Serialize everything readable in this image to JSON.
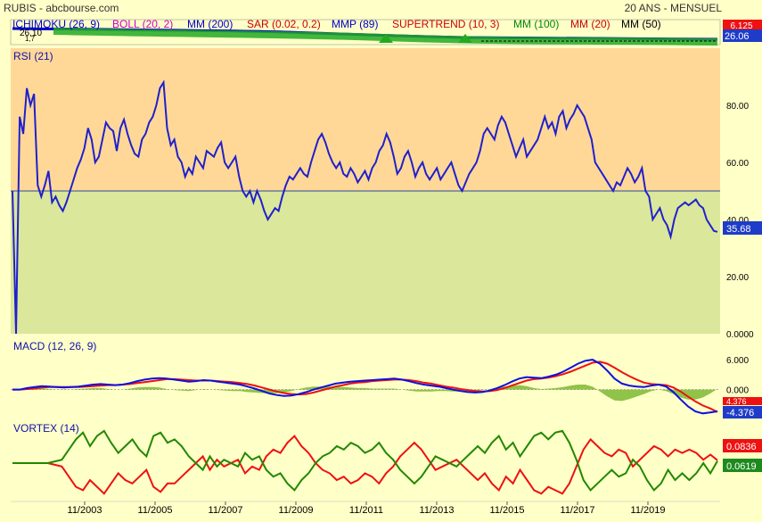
{
  "header": {
    "title": "RUBIS - abcbourse.com",
    "period": "20 ANS - MENSUEL"
  },
  "top_panel": {
    "legend": [
      {
        "label": "ICHIMOKU (26, 9)",
        "color": "#0000cc"
      },
      {
        "label": "BOLL (20, 2)",
        "color": "#cc00cc"
      },
      {
        "label": "MM (200)",
        "color": "#0000cc"
      },
      {
        "label": "SAR (0.02, 0.2)",
        "color": "#cc0000"
      },
      {
        "label": "MMP (89)",
        "color": "#0000cc"
      },
      {
        "label": "SUPERTREND (10, 3)",
        "color": "#cc0000"
      },
      {
        "label": "MM (100)",
        "color": "#008800"
      },
      {
        "label": "MM (20)",
        "color": "#cc0000"
      },
      {
        "label": "MM (50)",
        "color": "#000000"
      }
    ],
    "overlap_label": "26,10",
    "overlap_sub": "1,7",
    "price_tag_hidden": "6.125",
    "price_tag": "26.06"
  },
  "colors": {
    "background": "#ffffc8",
    "rsi_upper_zone": "#ffd898",
    "rsi_lower_zone": "#dbe79a",
    "rsi_line": "#2020cc",
    "macd_line": "#1010dd",
    "signal_line": "#ee1111",
    "histogram": "#7cb832",
    "vortex_plus": "#228800",
    "vortex_minus": "#ee1111",
    "axis_text": "#000000"
  },
  "x_axis": {
    "ticks": [
      "11/2003",
      "11/2005",
      "11/2007",
      "11/2009",
      "11/2011",
      "11/2013",
      "11/2015",
      "11/2017",
      "11/2019"
    ]
  },
  "chart_data": [
    {
      "type": "line",
      "title": "RSI (21)",
      "ylim": [
        0,
        100
      ],
      "yticks": [
        "80.00",
        "60.00",
        "40.00",
        "20.00",
        "0.0000"
      ],
      "reference_line": 50,
      "last_value_label": "35.68",
      "series": [
        {
          "name": "RSI (21)",
          "values": [
            50,
            0,
            76,
            70,
            86,
            80,
            84,
            52,
            48,
            52,
            57,
            46,
            48,
            45,
            43,
            46,
            50,
            54,
            58,
            61,
            65,
            72,
            68,
            60,
            62,
            68,
            74,
            72,
            71,
            64,
            72,
            75,
            70,
            66,
            63,
            62,
            68,
            70,
            74,
            76,
            80,
            86,
            88,
            72,
            66,
            68,
            62,
            60,
            55,
            58,
            56,
            62,
            60,
            58,
            64,
            63,
            62,
            65,
            67,
            60,
            58,
            60,
            62,
            55,
            50,
            48,
            50,
            46,
            50,
            47,
            43,
            40,
            42,
            44,
            43,
            48,
            52,
            55,
            54,
            56,
            58,
            56,
            55,
            60,
            64,
            68,
            70,
            67,
            63,
            60,
            58,
            60,
            56,
            55,
            58,
            56,
            53,
            55,
            57,
            54,
            58,
            60,
            64,
            66,
            70,
            67,
            62,
            56,
            58,
            62,
            64,
            60,
            55,
            58,
            60,
            56,
            54,
            56,
            58,
            54,
            56,
            58,
            60,
            56,
            52,
            50,
            53,
            56,
            58,
            60,
            64,
            70,
            72,
            70,
            68,
            73,
            76,
            74,
            70,
            66,
            62,
            65,
            68,
            62,
            64,
            66,
            68,
            72,
            76,
            72,
            74,
            70,
            76,
            78,
            72,
            75,
            77,
            80,
            78,
            76,
            72,
            68,
            60,
            58,
            56,
            54,
            52,
            50,
            53,
            52,
            55,
            58,
            56,
            53,
            55,
            58,
            50,
            48,
            40,
            42,
            44,
            40,
            38,
            34,
            40,
            44,
            45,
            46,
            45,
            46,
            47,
            45,
            44,
            40,
            38,
            36,
            35.68
          ]
        }
      ]
    },
    {
      "type": "line",
      "title": "MACD (12, 26, 9)",
      "ylim": [
        -6,
        8
      ],
      "yticks": [
        "6.000",
        "0.000"
      ],
      "last_value_labels": [
        "4.376",
        "-4.376"
      ],
      "series": [
        {
          "name": "MACD",
          "values": [
            0,
            0,
            0.3,
            0.5,
            0.7,
            0.6,
            0.5,
            0.4,
            0.5,
            0.6,
            0.8,
            1.0,
            1.1,
            1.0,
            0.9,
            1.0,
            1.3,
            1.7,
            2.0,
            2.2,
            2.3,
            2.2,
            2.0,
            1.8,
            1.6,
            1.7,
            1.9,
            1.8,
            1.6,
            1.4,
            1.2,
            1.0,
            0.6,
            0.2,
            -0.3,
            -0.8,
            -1.1,
            -1.3,
            -1.2,
            -0.9,
            -0.5,
            0,
            0.4,
            0.8,
            1.2,
            1.4,
            1.6,
            1.7,
            1.8,
            1.9,
            2.0,
            2.1,
            2.2,
            2.0,
            1.7,
            1.3,
            1.0,
            0.8,
            0.6,
            0.3,
            0,
            -0.3,
            -0.5,
            -0.6,
            -0.5,
            -0.2,
            0.3,
            0.9,
            1.6,
            2.2,
            2.5,
            2.4,
            2.3,
            2.6,
            3.0,
            3.6,
            4.4,
            5.2,
            5.8,
            6.0,
            5.2,
            3.8,
            2.2,
            1.2,
            0.8,
            0.6,
            0.5,
            0.8,
            1.0,
            0.6,
            -0.5,
            -2.0,
            -3.4,
            -4.4,
            -4.8,
            -4.6,
            -4.376
          ]
        },
        {
          "name": "Signal",
          "values": [
            0,
            0,
            0.1,
            0.2,
            0.4,
            0.5,
            0.5,
            0.5,
            0.5,
            0.5,
            0.6,
            0.7,
            0.8,
            0.9,
            0.9,
            1.0,
            1.1,
            1.3,
            1.5,
            1.7,
            1.9,
            2.1,
            2.1,
            2.0,
            1.9,
            1.8,
            1.8,
            1.8,
            1.7,
            1.6,
            1.5,
            1.3,
            1.1,
            0.8,
            0.4,
            0,
            -0.4,
            -0.7,
            -0.9,
            -1.0,
            -0.9,
            -0.6,
            -0.2,
            0.2,
            0.6,
            0.9,
            1.2,
            1.4,
            1.5,
            1.7,
            1.8,
            1.9,
            2.0,
            2.0,
            1.9,
            1.7,
            1.4,
            1.2,
            0.9,
            0.6,
            0.4,
            0.1,
            -0.1,
            -0.3,
            -0.4,
            -0.3,
            -0.1,
            0.3,
            0.8,
            1.3,
            1.8,
            2.1,
            2.2,
            2.4,
            2.7,
            3.1,
            3.6,
            4.2,
            4.8,
            5.4,
            5.6,
            5.2,
            4.4,
            3.5,
            2.7,
            2.0,
            1.4,
            1.1,
            1.0,
            0.9,
            0.4,
            -0.4,
            -1.4,
            -2.4,
            -3.2,
            -3.8,
            -4.5
          ]
        }
      ]
    },
    {
      "type": "line",
      "title": "VORTEX (14)",
      "last_value_labels": [
        "0.0836",
        "0.0619"
      ],
      "series": [
        {
          "name": "VI+",
          "values": [
            0,
            0,
            0,
            0,
            0,
            0,
            0.05,
            0.1,
            0.4,
            0.7,
            0.9,
            0.5,
            0.8,
            0.95,
            0.6,
            0.3,
            0.5,
            0.7,
            0.4,
            0.2,
            0.8,
            0.9,
            0.6,
            0.7,
            0.5,
            0.2,
            0.0,
            -0.2,
            0.2,
            -0.1,
            0.1,
            0.0,
            -0.1,
            0.3,
            0.1,
            0.2,
            -0.2,
            -0.4,
            -0.3,
            -0.6,
            -0.8,
            -0.5,
            -0.3,
            0.0,
            0.2,
            0.3,
            0.5,
            0.4,
            0.6,
            0.5,
            0.3,
            0.4,
            0.6,
            0.3,
            0.1,
            -0.2,
            -0.4,
            -0.6,
            -0.4,
            -0.1,
            0.2,
            0.1,
            0.0,
            -0.1,
            0.1,
            0.3,
            0.5,
            0.3,
            0.6,
            0.8,
            0.4,
            0.6,
            0.2,
            0.5,
            0.8,
            0.9,
            0.7,
            0.9,
            0.95,
            0.6,
            0.1,
            -0.5,
            -0.8,
            -0.6,
            -0.4,
            -0.2,
            -0.4,
            -0.3,
            0.1,
            -0.1,
            -0.5,
            -0.8,
            -0.6,
            -0.2,
            -0.5,
            -0.3,
            -0.5,
            -0.3,
            0.0,
            -0.3,
            0.0619
          ]
        },
        {
          "name": "VI-",
          "values": [
            0,
            0,
            0,
            0,
            0,
            0,
            -0.05,
            -0.1,
            -0.4,
            -0.7,
            -0.8,
            -0.5,
            -0.7,
            -0.9,
            -0.6,
            -0.3,
            -0.5,
            -0.6,
            -0.4,
            -0.2,
            -0.7,
            -0.85,
            -0.6,
            -0.6,
            -0.4,
            -0.2,
            0.0,
            0.2,
            -0.2,
            0.1,
            -0.1,
            0.0,
            0.1,
            -0.3,
            -0.1,
            -0.2,
            0.2,
            0.4,
            0.3,
            0.6,
            0.8,
            0.5,
            0.3,
            0.0,
            -0.2,
            -0.3,
            -0.5,
            -0.4,
            -0.6,
            -0.5,
            -0.3,
            -0.4,
            -0.6,
            -0.3,
            -0.1,
            0.2,
            0.4,
            0.6,
            0.4,
            0.1,
            -0.2,
            -0.1,
            0.0,
            0.1,
            -0.1,
            -0.3,
            -0.5,
            -0.3,
            -0.6,
            -0.8,
            -0.4,
            -0.6,
            -0.2,
            -0.5,
            -0.8,
            -0.9,
            -0.7,
            -0.8,
            -0.9,
            -0.6,
            -0.1,
            0.4,
            0.7,
            0.5,
            0.3,
            0.2,
            0.4,
            0.3,
            -0.1,
            0.1,
            0.3,
            0.5,
            0.4,
            0.2,
            0.4,
            0.3,
            0.4,
            0.3,
            0.1,
            0.25,
            0.0836
          ]
        }
      ]
    }
  ]
}
